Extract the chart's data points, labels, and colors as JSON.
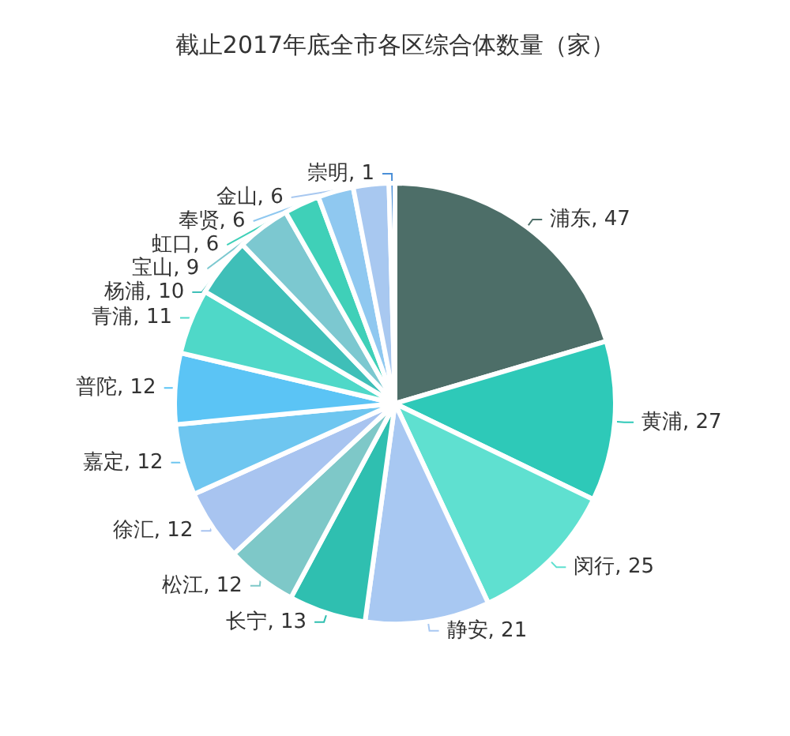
{
  "chart_data": {
    "type": "pie",
    "title": "截止2017年底全市各区综合体数量（家）",
    "categories": [
      "浦东",
      "黄浦",
      "闵行",
      "静安",
      "长宁",
      "松江",
      "徐汇",
      "嘉定",
      "普陀",
      "青浦",
      "杨浦",
      "宝山",
      "虹口",
      "奉贤",
      "金山",
      "崇明"
    ],
    "values": [
      47,
      27,
      25,
      21,
      13,
      12,
      12,
      12,
      12,
      11,
      10,
      9,
      6,
      6,
      6,
      1
    ],
    "colors": [
      "#4d6e68",
      "#2ec9b8",
      "#5fe0d0",
      "#a8c8f2",
      "#2fbfb0",
      "#7ec8c8",
      "#a8c4f0",
      "#6ec6f0",
      "#5bc4f5",
      "#4fd8c8",
      "#3fbfb8",
      "#7cc8d0",
      "#3fd0b8",
      "#8fc8f0",
      "#a8c8f0",
      "#4a8fd8"
    ],
    "value_labels": [
      ", 47",
      ", 27",
      ", 25",
      ", 21",
      ", 13",
      ", 12",
      ", 12",
      ", 12",
      ", 12",
      ", 11",
      ", 10",
      ", 9",
      ", 6",
      ", 6",
      ", 6",
      ", 1"
    ],
    "legend": false
  }
}
